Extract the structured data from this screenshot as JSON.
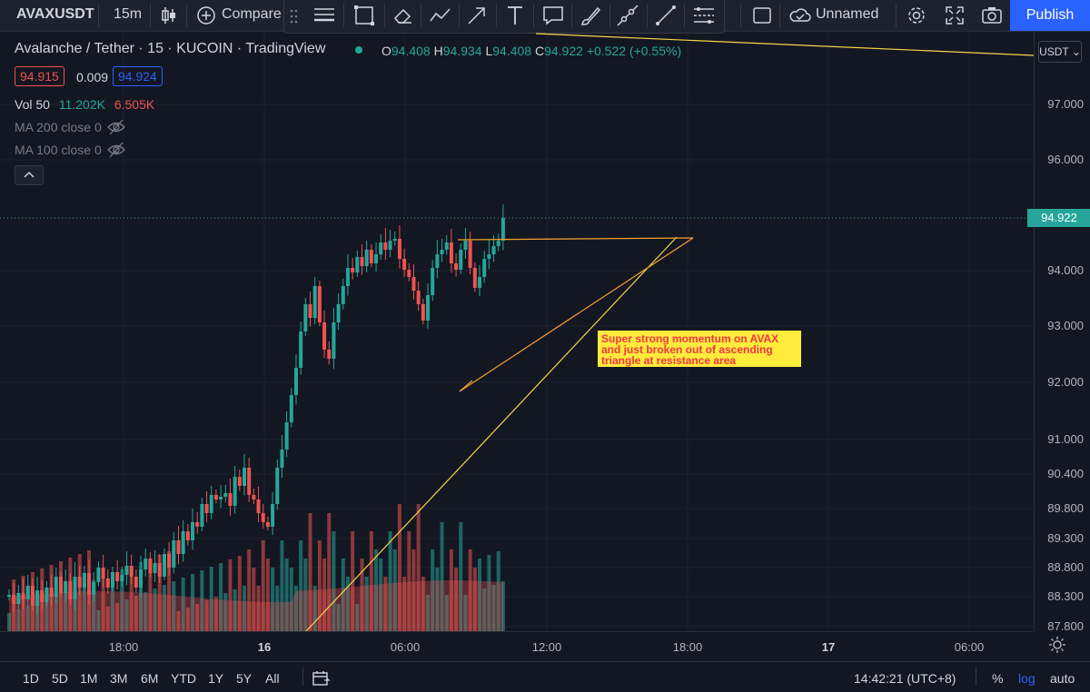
{
  "toolbar": {
    "symbol": "AVAXUSDT",
    "interval": "15m",
    "compare_label": "Compare",
    "layout_name": "Unnamed",
    "publish_label": "Publish"
  },
  "legend": {
    "title": "Avalanche / Tether · 15 · KUCOIN · TradingView",
    "ohlc": [
      {
        "k": "O",
        "v": "94.408"
      },
      {
        "k": "H",
        "v": "94.934"
      },
      {
        "k": "L",
        "v": "94.408"
      },
      {
        "k": "C",
        "v": "94.922"
      }
    ],
    "change": "+0.522 (+0.55%)",
    "bid": "94.915",
    "spread": "0.009",
    "ask": "94.924",
    "volume_label": "Vol 50",
    "volume_a": "11.202K",
    "volume_b": "6.505K",
    "ma200": "MA 200 close 0",
    "ma100": "MA 100 close 0"
  },
  "price_axis": {
    "currency": "USDT",
    "labels": [
      "97.000",
      "96.000",
      "94.000",
      "93.000",
      "92.000",
      "91.000",
      "90.400",
      "89.800",
      "89.300",
      "88.800",
      "88.300",
      "87.800"
    ],
    "last_price": "94.922"
  },
  "time_axis": [
    "18:00",
    "16",
    "06:00",
    "12:00",
    "18:00",
    "17",
    "06:00"
  ],
  "annotation": "Super strong momentum on AVAX\nand just broken out of ascending\ntriangle at resistance area",
  "bottom": {
    "ranges": [
      "1D",
      "5D",
      "1M",
      "3M",
      "6M",
      "YTD",
      "1Y",
      "5Y",
      "All"
    ],
    "clock": "14:42:21 (UTC+8)",
    "percent": "%",
    "log": "log",
    "auto": "auto"
  },
  "colors": {
    "up": "#26a69a",
    "down": "#ef5350",
    "accent": "#2962ff",
    "trendline": "#f7d54a",
    "triangle": "#f7a130"
  },
  "chart_data": {
    "type": "candlestick",
    "last_close": 94.922,
    "candles_close_sample": [
      88.3,
      89.5,
      90.4,
      92.0,
      93.0,
      94.0,
      94.5,
      94.922
    ]
  }
}
